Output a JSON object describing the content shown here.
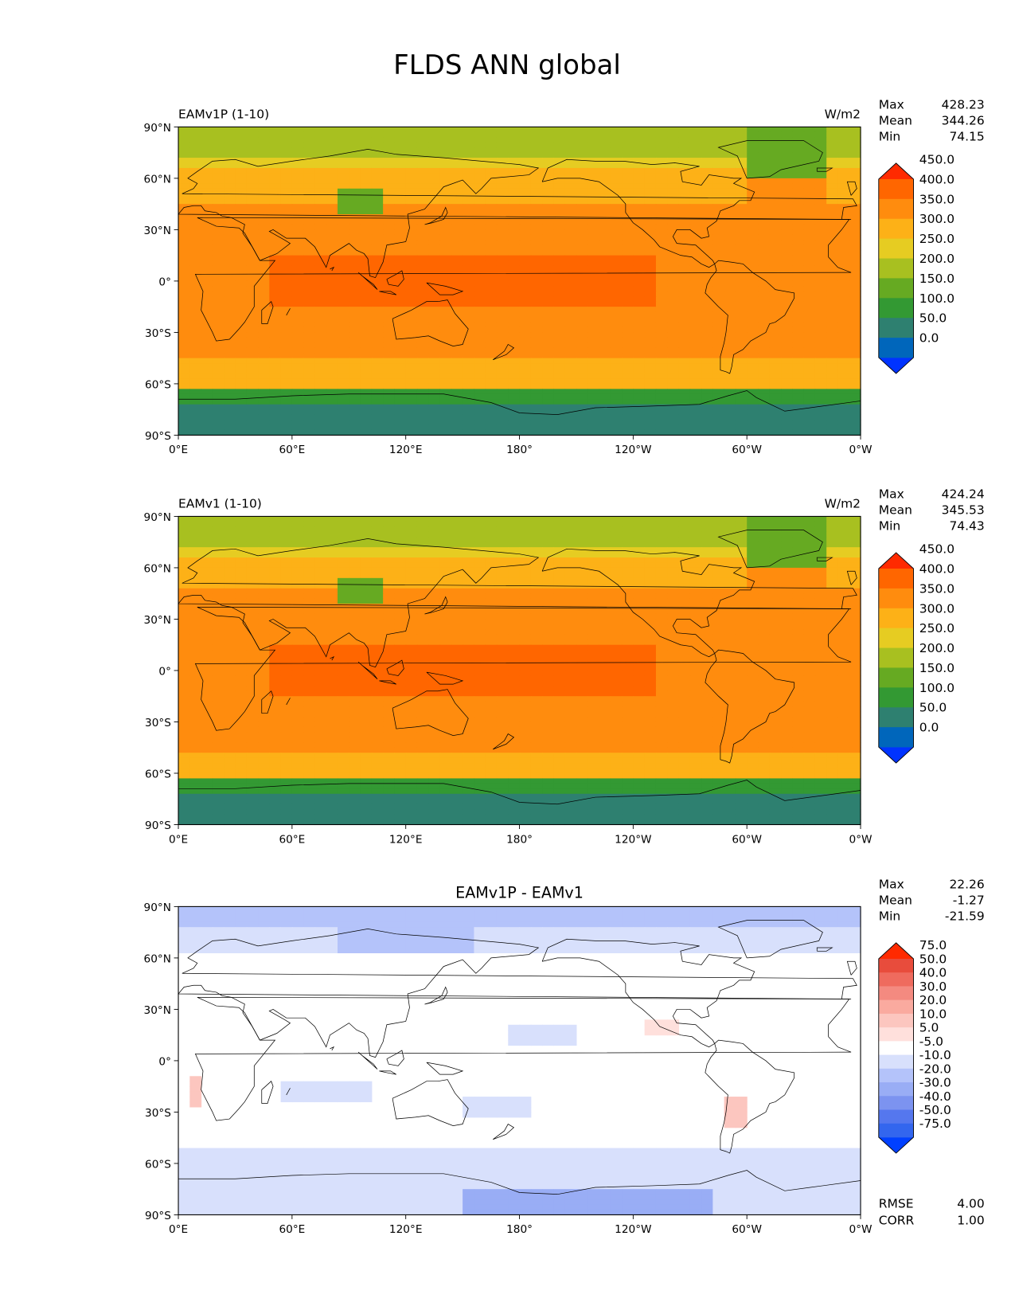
{
  "figure": {
    "title": "FLDS ANN global"
  },
  "colors": {
    "abs_levels": [
      "#0033ff",
      "#0066bb",
      "#2e8070",
      "#339933",
      "#66aa22",
      "#a8c020",
      "#e6cc22",
      "#fdb117",
      "#ff8c0e",
      "#ff6600",
      "#ff2a00"
    ],
    "diff_levels": [
      "#0040ff",
      "#3366ee",
      "#5577ee",
      "#7c93f0",
      "#99adf5",
      "#b4c3fa",
      "#d8e0fc",
      "#ffffff",
      "#ffe0dc",
      "#fcc6bf",
      "#faaa9f",
      "#f48a80",
      "#ef6b5e",
      "#e84c3c",
      "#ff2a00"
    ],
    "coast": "#000000"
  },
  "chart_data": [
    {
      "type": "heatmap",
      "left_title": "EAMv1P (1-10)",
      "center_title": "",
      "units": "W/m2",
      "stats": {
        "max_label": "Max",
        "max": "428.23",
        "mean_label": "Mean",
        "mean": "344.26",
        "min_label": "Min",
        "min": "74.15"
      },
      "colorbar": {
        "ticks": [
          "0.0",
          "50.0",
          "100.0",
          "150.0",
          "200.0",
          "250.0",
          "300.0",
          "350.0",
          "400.0",
          "450.0"
        ]
      },
      "xticks": [
        "0°E",
        "60°E",
        "120°E",
        "180°",
        "120°W",
        "60°W",
        "0°W"
      ],
      "yticks": [
        "90°N",
        "60°N",
        "30°N",
        "0°",
        "30°S",
        "60°S",
        "90°S"
      ],
      "xlim": [
        0,
        360
      ],
      "ylim": [
        -90,
        90
      ],
      "grid": false
    },
    {
      "type": "heatmap",
      "left_title": "EAMv1 (1-10)",
      "center_title": "",
      "units": "W/m2",
      "stats": {
        "max_label": "Max",
        "max": "424.24",
        "mean_label": "Mean",
        "mean": "345.53",
        "min_label": "Min",
        "min": "74.43"
      },
      "colorbar": {
        "ticks": [
          "0.0",
          "50.0",
          "100.0",
          "150.0",
          "200.0",
          "250.0",
          "300.0",
          "350.0",
          "400.0",
          "450.0"
        ]
      },
      "xticks": [
        "0°E",
        "60°E",
        "120°E",
        "180°",
        "120°W",
        "60°W",
        "0°W"
      ],
      "yticks": [
        "90°N",
        "60°N",
        "30°N",
        "0°",
        "30°S",
        "60°S",
        "90°S"
      ],
      "xlim": [
        0,
        360
      ],
      "ylim": [
        -90,
        90
      ],
      "grid": false
    },
    {
      "type": "heatmap",
      "left_title": "",
      "center_title": "EAMv1P - EAMv1",
      "units": "",
      "stats": {
        "max_label": "Max",
        "max": "22.26",
        "mean_label": "Mean",
        "mean": "-1.27",
        "min_label": "Min",
        "min": "-21.59"
      },
      "metrics": {
        "rmse_label": "RMSE",
        "rmse": "4.00",
        "corr_label": "CORR",
        "corr": "1.00"
      },
      "colorbar": {
        "ticks": [
          "-75.0",
          "-50.0",
          "-40.0",
          "-30.0",
          "-20.0",
          "-10.0",
          "-5.0",
          "5.0",
          "10.0",
          "20.0",
          "30.0",
          "40.0",
          "50.0",
          "75.0"
        ]
      },
      "xticks": [
        "0°E",
        "60°E",
        "120°E",
        "180°",
        "120°W",
        "60°W",
        "0°W"
      ],
      "yticks": [
        "90°N",
        "60°N",
        "30°N",
        "0°",
        "30°S",
        "60°S",
        "90°S"
      ],
      "xlim": [
        0,
        360
      ],
      "ylim": [
        -90,
        90
      ],
      "grid": false
    }
  ]
}
